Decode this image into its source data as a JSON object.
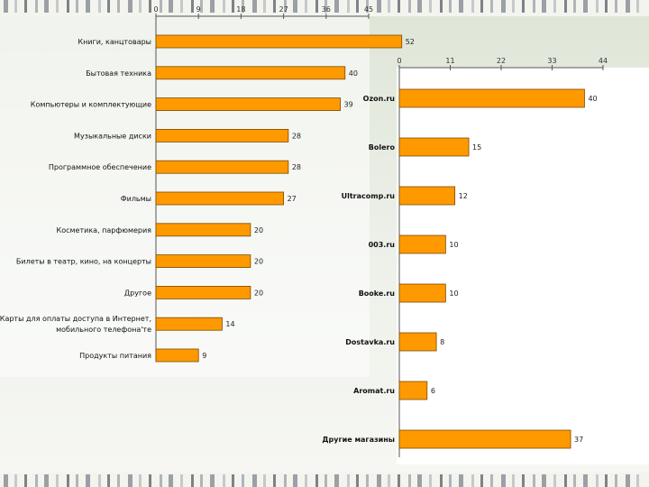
{
  "chart_data": [
    {
      "type": "bar",
      "orientation": "horizontal",
      "categories": [
        "Книги, канцтовары",
        "Бытовая техника",
        "Компьютеры и комплектующие",
        "Музыкальные диски",
        "Программное обеспечение",
        "Фильмы",
        "Косметика, парфюмерия",
        "Билеты в театр, кино, на концерты",
        "Другое",
        "Карты для оплаты доступа в Интернет, мобильного телефона'те",
        "Продукты питания"
      ],
      "values": [
        52,
        40,
        39,
        28,
        28,
        27,
        20,
        20,
        20,
        14,
        9
      ],
      "value_labels": [
        "52",
        "40",
        "39",
        "28",
        "28",
        "27",
        "20",
        "20",
        "20",
        "14",
        "9"
      ],
      "xticks": [
        "0",
        "9",
        "18",
        "27",
        "36",
        "45"
      ],
      "xlim": [
        0,
        45
      ],
      "color": "#ff9900",
      "grid": false
    },
    {
      "type": "bar",
      "orientation": "horizontal",
      "categories": [
        "Ozon.ru",
        "Bolero",
        "Ultracomp.ru",
        "003.ru",
        "Booke.ru",
        "Dostavka.ru",
        "Aromat.ru",
        "Другие магазины"
      ],
      "values": [
        40,
        15,
        12,
        10,
        10,
        8,
        6,
        37
      ],
      "value_labels": [
        "40",
        "15",
        "12",
        "10",
        "10",
        "8",
        "6",
        "37"
      ],
      "xticks": [
        "0",
        "11",
        "22",
        "33",
        "44"
      ],
      "xlim": [
        0,
        44
      ],
      "color": "#ff9900",
      "grid": false
    }
  ]
}
